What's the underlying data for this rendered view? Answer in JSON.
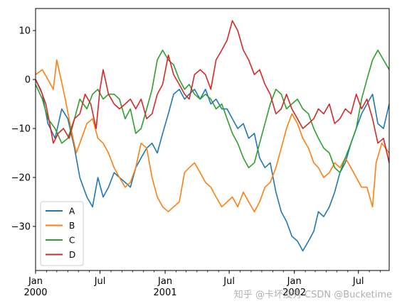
{
  "chart_data": {
    "type": "line",
    "xlim": [
      "2000-01-01",
      "2002-09-26"
    ],
    "ylim": [
      -39,
      14.5
    ],
    "y_ticks": [
      10,
      0,
      -10,
      -20,
      -30
    ],
    "x_ticks": [
      {
        "date": "2000-01-01",
        "label": "Jan",
        "year": "2000"
      },
      {
        "date": "2000-07-01",
        "label": "Jul",
        "year": ""
      },
      {
        "date": "2001-01-01",
        "label": "Jan",
        "year": "2001"
      },
      {
        "date": "2001-07-01",
        "label": "Jul",
        "year": ""
      },
      {
        "date": "2002-01-01",
        "label": "Jan",
        "year": "2002"
      },
      {
        "date": "2002-07-01",
        "label": "Jul",
        "year": ""
      }
    ],
    "legend_position": "lower-left",
    "grid": false,
    "series": [
      {
        "name": "A",
        "color": "#1f77b4",
        "points": [
          [
            "2000-01-01",
            0
          ],
          [
            "2000-01-20",
            -3
          ],
          [
            "2000-02-05",
            -9
          ],
          [
            "2000-02-25",
            -12
          ],
          [
            "2000-03-15",
            -6
          ],
          [
            "2000-04-01",
            -8
          ],
          [
            "2000-04-20",
            -14
          ],
          [
            "2000-05-05",
            -20
          ],
          [
            "2000-05-25",
            -24
          ],
          [
            "2000-06-10",
            -26
          ],
          [
            "2000-06-25",
            -20
          ],
          [
            "2000-07-10",
            -24
          ],
          [
            "2000-07-25",
            -22
          ],
          [
            "2000-08-10",
            -19
          ],
          [
            "2000-08-25",
            -20
          ],
          [
            "2000-09-10",
            -21
          ],
          [
            "2000-09-25",
            -22
          ],
          [
            "2000-10-10",
            -18
          ],
          [
            "2000-10-25",
            -16
          ],
          [
            "2000-11-10",
            -14
          ],
          [
            "2000-11-25",
            -13
          ],
          [
            "2000-12-10",
            -15
          ],
          [
            "2000-12-25",
            -11
          ],
          [
            "2001-01-10",
            -7
          ],
          [
            "2001-01-25",
            -3
          ],
          [
            "2001-02-10",
            -2
          ],
          [
            "2001-02-25",
            -4
          ],
          [
            "2001-03-10",
            -3
          ],
          [
            "2001-03-25",
            -2
          ],
          [
            "2001-04-10",
            -4
          ],
          [
            "2001-04-25",
            -2
          ],
          [
            "2001-05-10",
            -5
          ],
          [
            "2001-05-25",
            -4
          ],
          [
            "2001-06-10",
            -6
          ],
          [
            "2001-06-25",
            -6
          ],
          [
            "2001-07-10",
            -8
          ],
          [
            "2001-07-25",
            -10
          ],
          [
            "2001-08-10",
            -9
          ],
          [
            "2001-08-25",
            -12
          ],
          [
            "2001-09-10",
            -11
          ],
          [
            "2001-09-25",
            -16
          ],
          [
            "2001-10-10",
            -18
          ],
          [
            "2001-10-25",
            -17
          ],
          [
            "2001-11-10",
            -23
          ],
          [
            "2001-11-25",
            -27
          ],
          [
            "2001-12-10",
            -29
          ],
          [
            "2001-12-25",
            -32
          ],
          [
            "2002-01-10",
            -33
          ],
          [
            "2002-01-25",
            -35
          ],
          [
            "2002-02-10",
            -33
          ],
          [
            "2002-02-25",
            -31
          ],
          [
            "2002-03-10",
            -27
          ],
          [
            "2002-03-25",
            -28
          ],
          [
            "2002-04-10",
            -26
          ],
          [
            "2002-04-25",
            -23
          ],
          [
            "2002-05-10",
            -19
          ],
          [
            "2002-05-25",
            -17
          ],
          [
            "2002-06-10",
            -13
          ],
          [
            "2002-06-25",
            -10
          ],
          [
            "2002-07-10",
            -7
          ],
          [
            "2002-07-25",
            -5
          ],
          [
            "2002-08-10",
            -3
          ],
          [
            "2002-08-25",
            -9
          ],
          [
            "2002-09-10",
            -10
          ],
          [
            "2002-09-26",
            -5
          ]
        ]
      },
      {
        "name": "B",
        "color": "#ff7f0e",
        "points": [
          [
            "2000-01-01",
            1
          ],
          [
            "2000-01-20",
            2
          ],
          [
            "2000-02-05",
            0
          ],
          [
            "2000-02-20",
            -2
          ],
          [
            "2000-03-01",
            4
          ],
          [
            "2000-03-10",
            1
          ],
          [
            "2000-03-25",
            -4
          ],
          [
            "2000-04-10",
            -10
          ],
          [
            "2000-04-25",
            -15
          ],
          [
            "2000-05-10",
            -12
          ],
          [
            "2000-05-25",
            -9
          ],
          [
            "2000-06-10",
            -8
          ],
          [
            "2000-06-25",
            -12
          ],
          [
            "2000-07-10",
            -13
          ],
          [
            "2000-07-25",
            -15
          ],
          [
            "2000-08-10",
            -18
          ],
          [
            "2000-08-25",
            -20
          ],
          [
            "2000-09-10",
            -22
          ],
          [
            "2000-09-25",
            -21
          ],
          [
            "2000-10-10",
            -18
          ],
          [
            "2000-10-25",
            -13
          ],
          [
            "2000-11-10",
            -14
          ],
          [
            "2000-11-25",
            -20
          ],
          [
            "2000-12-10",
            -24
          ],
          [
            "2000-12-25",
            -26
          ],
          [
            "2001-01-10",
            -27
          ],
          [
            "2001-01-25",
            -26
          ],
          [
            "2001-02-10",
            -25
          ],
          [
            "2001-02-25",
            -19
          ],
          [
            "2001-03-10",
            -18
          ],
          [
            "2001-03-25",
            -17
          ],
          [
            "2001-04-10",
            -19
          ],
          [
            "2001-04-25",
            -21
          ],
          [
            "2001-05-10",
            -22
          ],
          [
            "2001-05-25",
            -24
          ],
          [
            "2001-06-10",
            -26
          ],
          [
            "2001-06-25",
            -25
          ],
          [
            "2001-07-10",
            -24
          ],
          [
            "2001-07-25",
            -26
          ],
          [
            "2001-08-10",
            -23
          ],
          [
            "2001-08-25",
            -25
          ],
          [
            "2001-09-10",
            -27
          ],
          [
            "2001-09-25",
            -25
          ],
          [
            "2001-10-10",
            -22
          ],
          [
            "2001-10-25",
            -21
          ],
          [
            "2001-11-10",
            -18
          ],
          [
            "2001-11-25",
            -14
          ],
          [
            "2001-12-10",
            -10
          ],
          [
            "2001-12-25",
            -7
          ],
          [
            "2002-01-10",
            -9
          ],
          [
            "2002-01-25",
            -12
          ],
          [
            "2002-02-10",
            -14
          ],
          [
            "2002-02-25",
            -17
          ],
          [
            "2002-03-10",
            -18
          ],
          [
            "2002-03-25",
            -20
          ],
          [
            "2002-04-10",
            -19
          ],
          [
            "2002-04-25",
            -17
          ],
          [
            "2002-05-10",
            -18
          ],
          [
            "2002-05-25",
            -16
          ],
          [
            "2002-06-10",
            -18
          ],
          [
            "2002-06-25",
            -20
          ],
          [
            "2002-07-10",
            -22
          ],
          [
            "2002-07-25",
            -22
          ],
          [
            "2002-08-10",
            -26
          ],
          [
            "2002-08-20",
            -17
          ],
          [
            "2002-09-05",
            -13
          ],
          [
            "2002-09-26",
            -15
          ]
        ]
      },
      {
        "name": "C",
        "color": "#2ca02c",
        "points": [
          [
            "2000-01-01",
            -1
          ],
          [
            "2000-01-20",
            -4
          ],
          [
            "2000-02-05",
            -8
          ],
          [
            "2000-02-25",
            -10
          ],
          [
            "2000-03-15",
            -13
          ],
          [
            "2000-04-01",
            -12
          ],
          [
            "2000-04-20",
            -8
          ],
          [
            "2000-05-05",
            -4
          ],
          [
            "2000-05-25",
            -6
          ],
          [
            "2000-06-10",
            -3
          ],
          [
            "2000-06-25",
            -2
          ],
          [
            "2000-07-10",
            -4
          ],
          [
            "2000-07-25",
            -3
          ],
          [
            "2000-08-10",
            -3
          ],
          [
            "2000-08-25",
            -4
          ],
          [
            "2000-09-10",
            -8
          ],
          [
            "2000-09-25",
            -6
          ],
          [
            "2000-10-10",
            -11
          ],
          [
            "2000-10-25",
            -10
          ],
          [
            "2000-11-10",
            -6
          ],
          [
            "2000-11-25",
            -2
          ],
          [
            "2000-12-10",
            4
          ],
          [
            "2000-12-25",
            6
          ],
          [
            "2001-01-10",
            4
          ],
          [
            "2001-01-25",
            3
          ],
          [
            "2001-02-10",
            0
          ],
          [
            "2001-02-25",
            -2
          ],
          [
            "2001-03-10",
            -1
          ],
          [
            "2001-03-25",
            -3
          ],
          [
            "2001-04-10",
            -4
          ],
          [
            "2001-04-25",
            -3
          ],
          [
            "2001-05-10",
            -4
          ],
          [
            "2001-05-25",
            -6
          ],
          [
            "2001-06-10",
            -5
          ],
          [
            "2001-06-25",
            -8
          ],
          [
            "2001-07-10",
            -11
          ],
          [
            "2001-07-25",
            -13
          ],
          [
            "2001-08-10",
            -16
          ],
          [
            "2001-08-25",
            -18
          ],
          [
            "2001-09-10",
            -17
          ],
          [
            "2001-09-25",
            -13
          ],
          [
            "2001-10-10",
            -9
          ],
          [
            "2001-10-25",
            -5
          ],
          [
            "2001-11-10",
            -2
          ],
          [
            "2001-11-25",
            -3
          ],
          [
            "2001-12-10",
            -6
          ],
          [
            "2001-12-25",
            -5
          ],
          [
            "2002-01-10",
            -4
          ],
          [
            "2002-01-25",
            -6
          ],
          [
            "2002-02-10",
            -7
          ],
          [
            "2002-02-25",
            -10
          ],
          [
            "2002-03-10",
            -12
          ],
          [
            "2002-03-25",
            -14
          ],
          [
            "2002-04-10",
            -15
          ],
          [
            "2002-04-25",
            -18
          ],
          [
            "2002-05-10",
            -19
          ],
          [
            "2002-05-25",
            -16
          ],
          [
            "2002-06-10",
            -13
          ],
          [
            "2002-06-25",
            -10
          ],
          [
            "2002-07-10",
            -4
          ],
          [
            "2002-07-25",
            0
          ],
          [
            "2002-08-10",
            4
          ],
          [
            "2002-08-25",
            6
          ],
          [
            "2002-09-10",
            4
          ],
          [
            "2002-09-26",
            2
          ]
        ]
      },
      {
        "name": "D",
        "color": "#d62728",
        "points": [
          [
            "2000-01-01",
            0
          ],
          [
            "2000-01-15",
            -2
          ],
          [
            "2000-01-30",
            -5
          ],
          [
            "2000-02-10",
            -9
          ],
          [
            "2000-02-20",
            -13
          ],
          [
            "2000-03-05",
            -11
          ],
          [
            "2000-03-20",
            -10
          ],
          [
            "2000-04-05",
            -12
          ],
          [
            "2000-04-20",
            -8
          ],
          [
            "2000-05-05",
            -7
          ],
          [
            "2000-05-20",
            -3
          ],
          [
            "2000-06-05",
            -5
          ],
          [
            "2000-06-20",
            -10
          ],
          [
            "2000-07-01",
            -2
          ],
          [
            "2000-07-10",
            2
          ],
          [
            "2000-07-25",
            -3
          ],
          [
            "2000-08-10",
            -5
          ],
          [
            "2000-08-25",
            -6
          ],
          [
            "2000-09-10",
            -5
          ],
          [
            "2000-09-25",
            -4
          ],
          [
            "2000-10-10",
            -6
          ],
          [
            "2000-10-25",
            -4
          ],
          [
            "2000-11-10",
            -8
          ],
          [
            "2000-11-25",
            -7
          ],
          [
            "2000-12-10",
            -3
          ],
          [
            "2000-12-25",
            -1
          ],
          [
            "2001-01-10",
            5
          ],
          [
            "2001-01-25",
            1
          ],
          [
            "2001-02-10",
            -1
          ],
          [
            "2001-02-25",
            -3
          ],
          [
            "2001-03-10",
            -4
          ],
          [
            "2001-03-25",
            1
          ],
          [
            "2001-04-10",
            2
          ],
          [
            "2001-04-25",
            1
          ],
          [
            "2001-05-10",
            -2
          ],
          [
            "2001-05-25",
            4
          ],
          [
            "2001-06-10",
            6
          ],
          [
            "2001-06-25",
            8
          ],
          [
            "2001-07-10",
            12
          ],
          [
            "2001-07-25",
            10
          ],
          [
            "2001-08-10",
            6
          ],
          [
            "2001-08-25",
            4
          ],
          [
            "2001-09-10",
            1
          ],
          [
            "2001-09-25",
            2
          ],
          [
            "2001-10-10",
            -1
          ],
          [
            "2001-10-25",
            -3
          ],
          [
            "2001-11-10",
            -7
          ],
          [
            "2001-11-25",
            -6
          ],
          [
            "2001-12-10",
            -3
          ],
          [
            "2001-12-25",
            -6
          ],
          [
            "2002-01-10",
            -8
          ],
          [
            "2002-01-25",
            -10
          ],
          [
            "2002-02-10",
            -9
          ],
          [
            "2002-02-25",
            -8
          ],
          [
            "2002-03-10",
            -6
          ],
          [
            "2002-03-25",
            -7
          ],
          [
            "2002-04-10",
            -5
          ],
          [
            "2002-04-25",
            -9
          ],
          [
            "2002-05-10",
            -8
          ],
          [
            "2002-05-25",
            -6
          ],
          [
            "2002-06-10",
            -7
          ],
          [
            "2002-06-25",
            -3
          ],
          [
            "2002-07-10",
            -6
          ],
          [
            "2002-07-25",
            -4
          ],
          [
            "2002-08-10",
            -8
          ],
          [
            "2002-08-25",
            -13
          ],
          [
            "2002-09-10",
            -12
          ],
          [
            "2002-09-26",
            -17
          ]
        ]
      }
    ]
  },
  "watermark": "知乎 @卡坏没秀  CSDN @Bucketime"
}
